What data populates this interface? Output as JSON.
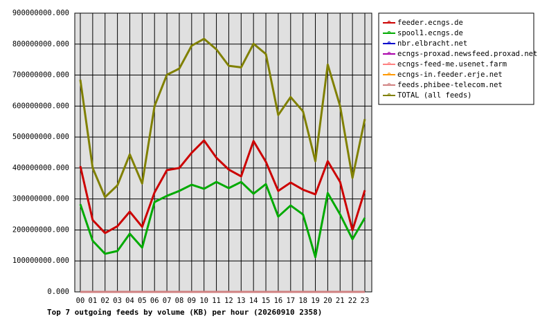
{
  "chart_data": {
    "type": "line",
    "title": "Top 7 outgoing feeds by volume (KB) per hour (20260910 2358)",
    "categories": [
      "00",
      "01",
      "02",
      "03",
      "04",
      "05",
      "06",
      "07",
      "08",
      "09",
      "10",
      "11",
      "12",
      "13",
      "14",
      "15",
      "16",
      "17",
      "18",
      "19",
      "20",
      "21",
      "22",
      "23"
    ],
    "series": [
      {
        "name": "feeder.ecngs.de",
        "color": "#cc0000",
        "values": [
          406000000,
          232000000,
          190000000,
          212000000,
          259000000,
          210000000,
          321000000,
          393000000,
          400000000,
          449000000,
          489000000,
          433000000,
          395000000,
          373000000,
          487000000,
          420000000,
          326000000,
          353000000,
          330000000,
          315000000,
          422000000,
          355000000,
          199000000,
          328000000
        ]
      },
      {
        "name": "spool1.ecngs.de",
        "color": "#00aa00",
        "values": [
          283000000,
          165000000,
          123000000,
          132000000,
          188000000,
          143000000,
          290000000,
          310000000,
          326000000,
          346000000,
          333000000,
          355000000,
          335000000,
          355000000,
          317000000,
          348000000,
          243000000,
          279000000,
          250000000,
          112000000,
          319000000,
          250000000,
          170000000,
          239000000
        ]
      },
      {
        "name": "nbr.elbracht.net",
        "color": "#0000cc",
        "values": [
          0,
          0,
          0,
          0,
          0,
          0,
          0,
          0,
          0,
          0,
          0,
          0,
          0,
          0,
          0,
          0,
          0,
          0,
          0,
          0,
          0,
          0,
          0,
          0
        ]
      },
      {
        "name": "ecngs-proxad.newsfeed.proxad.net",
        "color": "#aa00aa",
        "values": [
          0,
          0,
          0,
          0,
          0,
          0,
          0,
          0,
          0,
          0,
          0,
          0,
          0,
          0,
          0,
          0,
          0,
          0,
          0,
          0,
          0,
          0,
          0,
          0
        ]
      },
      {
        "name": "ecngs-feed-me.usenet.farm",
        "color": "#ff8080",
        "values": [
          0,
          0,
          0,
          0,
          0,
          0,
          0,
          0,
          0,
          0,
          0,
          0,
          0,
          0,
          0,
          0,
          0,
          0,
          0,
          0,
          0,
          0,
          0,
          0
        ]
      },
      {
        "name": "ecngs-in.feeder.erje.net",
        "color": "#ff9900",
        "values": [
          0,
          0,
          0,
          0,
          0,
          0,
          0,
          0,
          0,
          0,
          0,
          0,
          0,
          0,
          0,
          0,
          0,
          0,
          0,
          0,
          0,
          0,
          0,
          0
        ]
      },
      {
        "name": "feeds.phibee-telecom.net",
        "color": "#d08080",
        "values": [
          0,
          0,
          0,
          0,
          0,
          0,
          0,
          0,
          0,
          0,
          0,
          0,
          0,
          0,
          0,
          0,
          0,
          0,
          0,
          0,
          0,
          0,
          0,
          0
        ]
      },
      {
        "name": "TOTAL (all feeds)",
        "color": "#808000",
        "values": [
          685000000,
          400000000,
          306000000,
          344000000,
          444000000,
          350000000,
          600000000,
          701000000,
          721000000,
          795000000,
          817000000,
          783000000,
          730000000,
          725000000,
          801000000,
          768000000,
          571000000,
          629000000,
          583000000,
          422000000,
          734000000,
          600000000,
          368000000,
          558000000
        ]
      }
    ],
    "ylim": [
      0,
      900000000
    ],
    "yticks": [
      {
        "value": 0,
        "label": "0.000"
      },
      {
        "value": 100000000,
        "label": "100000000.000"
      },
      {
        "value": 200000000,
        "label": "200000000.000"
      },
      {
        "value": 300000000,
        "label": "300000000.000"
      },
      {
        "value": 400000000,
        "label": "400000000.000"
      },
      {
        "value": 500000000,
        "label": "500000000.000"
      },
      {
        "value": 600000000,
        "label": "600000000.000"
      },
      {
        "value": 700000000,
        "label": "700000000.000"
      },
      {
        "value": 800000000,
        "label": "800000000.000"
      },
      {
        "value": 900000000,
        "label": "900000000.000"
      }
    ],
    "grid": true
  }
}
